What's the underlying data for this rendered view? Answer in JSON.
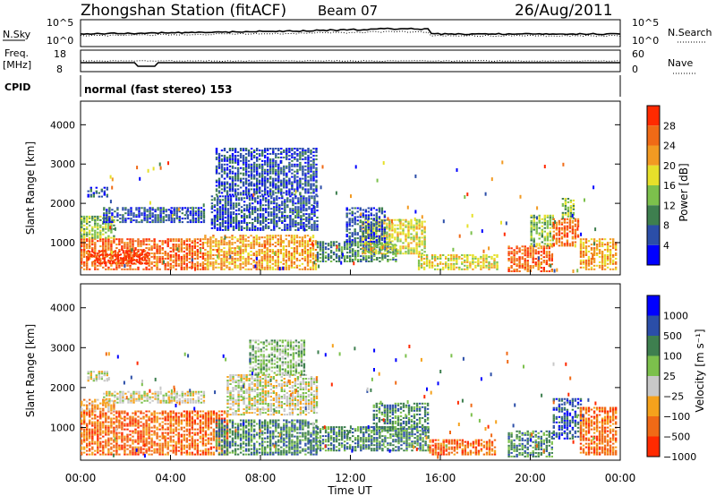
{
  "header": {
    "station": "Zhongshan Station (fitACF)",
    "beam": "Beam 07",
    "date": "26/Aug/2011"
  },
  "summary": {
    "nsky_label": "N.Sky",
    "nsky_ticks": [
      "10^5",
      "10^0"
    ],
    "nsearch_label": "N.Search",
    "nsearch_ticks": [
      "10^5",
      "10^0"
    ],
    "freq_label": "Freq.",
    "freq_unit": "[MHz]",
    "freq_ticks": [
      "18",
      "8"
    ],
    "nave_label": "Nave",
    "nave_ticks": [
      "60",
      "0"
    ],
    "cpid_label": "CPID",
    "cpid_text": "normal (fast stereo) 153"
  },
  "colors": {
    "power": [
      "#0000ff",
      "#2b4ea8",
      "#3e7f4f",
      "#7cc04c",
      "#e6e02a",
      "#f29a22",
      "#f06a16",
      "#ff2a00"
    ],
    "velocity": [
      "#ff2a00",
      "#f06a16",
      "#f5a21c",
      "#c8c8c8",
      "#7cc04c",
      "#3e7f4f",
      "#2b4ea8",
      "#0000ff"
    ]
  },
  "chart_data": [
    {
      "type": "heatmap",
      "name": "power",
      "ylabel": "Slant Range [km]",
      "xlabel": "",
      "xlim": [
        0,
        24
      ],
      "ylim": [
        180,
        4600
      ],
      "yticks": [
        "4000",
        "3000",
        "2000",
        "1000"
      ],
      "colorbar_label": "Power [dB]",
      "colorbar_ticks": [
        "28",
        "24",
        "20",
        "16",
        "12",
        "8",
        "4"
      ],
      "regions": [
        {
          "t0": 0.0,
          "t1": 5.5,
          "r0": 300,
          "r1": 1100,
          "level": 6
        },
        {
          "t0": 0.3,
          "t1": 3.0,
          "r0": 450,
          "r1": 800,
          "level": 7
        },
        {
          "t0": 0.0,
          "t1": 1.5,
          "r0": 1100,
          "r1": 1650,
          "level": 3
        },
        {
          "t0": 0.3,
          "t1": 1.2,
          "r0": 2150,
          "r1": 2400,
          "level": 1
        },
        {
          "t0": 1.0,
          "t1": 5.5,
          "r0": 1500,
          "r1": 1900,
          "level": 1
        },
        {
          "t0": 5.5,
          "t1": 10.5,
          "r0": 300,
          "r1": 1200,
          "level": 5
        },
        {
          "t0": 5.8,
          "t1": 10.5,
          "r0": 1300,
          "r1": 2200,
          "level": 1
        },
        {
          "t0": 6.0,
          "t1": 10.5,
          "r0": 2200,
          "r1": 3400,
          "level": 1
        },
        {
          "t0": 10.5,
          "t1": 14.0,
          "r0": 500,
          "r1": 1000,
          "level": 2
        },
        {
          "t0": 12.5,
          "t1": 15.3,
          "r0": 700,
          "r1": 1600,
          "level": 4
        },
        {
          "t0": 11.8,
          "t1": 13.5,
          "r0": 1000,
          "r1": 1900,
          "level": 1
        },
        {
          "t0": 15.0,
          "t1": 18.5,
          "r0": 300,
          "r1": 700,
          "level": 4
        },
        {
          "t0": 19.0,
          "t1": 21.0,
          "r0": 250,
          "r1": 900,
          "level": 6
        },
        {
          "t0": 20.0,
          "t1": 21.0,
          "r0": 900,
          "r1": 1700,
          "level": 3
        },
        {
          "t0": 21.0,
          "t1": 22.2,
          "r0": 900,
          "r1": 1600,
          "level": 6
        },
        {
          "t0": 21.4,
          "t1": 22.0,
          "r0": 1600,
          "r1": 2100,
          "level": 3
        },
        {
          "t0": 22.2,
          "t1": 23.8,
          "r0": 300,
          "r1": 1100,
          "level": 5
        }
      ]
    },
    {
      "type": "heatmap",
      "name": "velocity",
      "ylabel": "Slant Range [km]",
      "xlabel": "Time UT",
      "xlim": [
        0,
        24
      ],
      "ylim": [
        180,
        4600
      ],
      "xticks": [
        "00:00",
        "04:00",
        "08:00",
        "12:00",
        "16:00",
        "20:00",
        "00:00"
      ],
      "yticks": [
        "4000",
        "3000",
        "2000",
        "1000"
      ],
      "colorbar_label": "Velocity [m s⁻¹]",
      "colorbar_ticks": [
        "1000",
        "500",
        "100",
        "25",
        "−25",
        "−100",
        "−500",
        "−1000"
      ],
      "regions": [
        {
          "t0": 0.0,
          "t1": 6.5,
          "r0": 300,
          "r1": 1400,
          "level": 1
        },
        {
          "t0": 0.0,
          "t1": 1.5,
          "r0": 1400,
          "r1": 1700,
          "level": 2
        },
        {
          "t0": 0.3,
          "t1": 1.2,
          "r0": 2150,
          "r1": 2400,
          "level": 3
        },
        {
          "t0": 1.0,
          "t1": 5.5,
          "r0": 1600,
          "r1": 1900,
          "level": 3
        },
        {
          "t0": 6.0,
          "t1": 10.5,
          "r0": 300,
          "r1": 1200,
          "level": 5
        },
        {
          "t0": 6.5,
          "t1": 10.5,
          "r0": 1300,
          "r1": 2300,
          "level": 3
        },
        {
          "t0": 7.5,
          "t1": 10.0,
          "r0": 2300,
          "r1": 3200,
          "level": 4
        },
        {
          "t0": 10.5,
          "t1": 15.5,
          "r0": 400,
          "r1": 1000,
          "level": 5
        },
        {
          "t0": 13.0,
          "t1": 15.5,
          "r0": 900,
          "r1": 1600,
          "level": 5
        },
        {
          "t0": 15.5,
          "t1": 18.5,
          "r0": 300,
          "r1": 700,
          "level": 1
        },
        {
          "t0": 19.0,
          "t1": 21.0,
          "r0": 250,
          "r1": 900,
          "level": 5
        },
        {
          "t0": 21.0,
          "t1": 22.3,
          "r0": 700,
          "r1": 1700,
          "level": 6
        },
        {
          "t0": 22.2,
          "t1": 23.8,
          "r0": 300,
          "r1": 1500,
          "level": 1
        }
      ]
    }
  ]
}
